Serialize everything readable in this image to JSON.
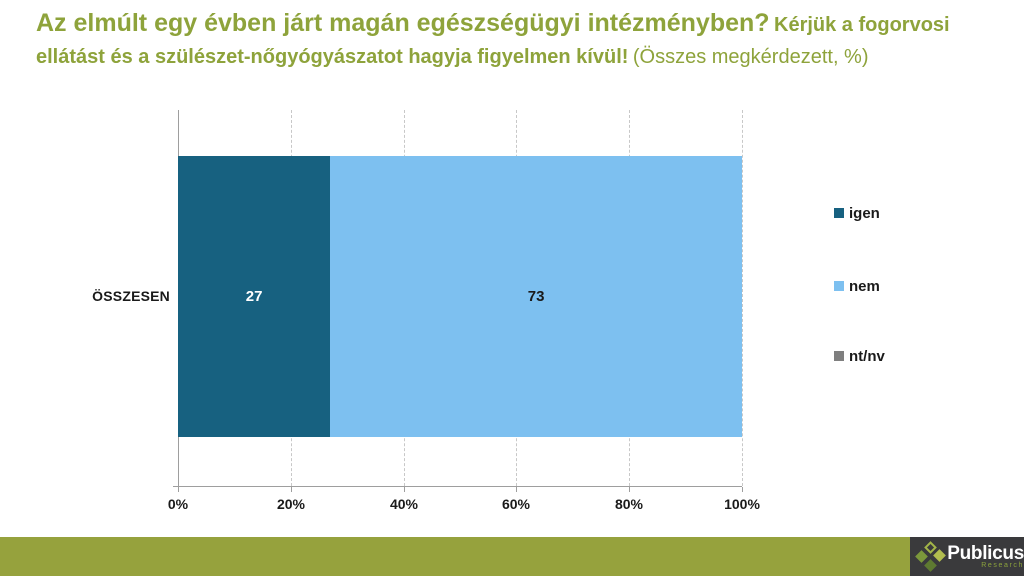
{
  "title": {
    "question": "Az elmúlt egy évben járt magán egészségügyi intézményben?",
    "instruction": "Kérjük a fogorvosi ellátást és a szülészet-nőgyógyászatot hagyja figyelmen kívül!",
    "note": "(Összes megkérdezett, %)",
    "color": "#8EA33B"
  },
  "chart_data": {
    "type": "bar",
    "orientation": "horizontal",
    "stacked": true,
    "categories": [
      "ÖSSZESEN"
    ],
    "series": [
      {
        "name": "igen",
        "values": [
          27
        ],
        "color": "#176180",
        "label_color": "#FFFFFF"
      },
      {
        "name": "nem",
        "values": [
          73
        ],
        "color": "#7DC0F0",
        "label_color": "#1A1A1A"
      },
      {
        "name": "nt/nv",
        "values": [
          0
        ],
        "color": "#7F7F7F",
        "label_color": "#1A1A1A"
      }
    ],
    "x_ticks": [
      "0%",
      "20%",
      "40%",
      "60%",
      "80%",
      "100%"
    ],
    "xlim": [
      0,
      100
    ],
    "grid": "dashed-vertical-gridlines",
    "legend_position": "right"
  },
  "footer": {
    "bar_color": "#96A23D",
    "logo_bg": "#3A3A3C",
    "brand": "Publicus",
    "brand_sub": "Research"
  }
}
